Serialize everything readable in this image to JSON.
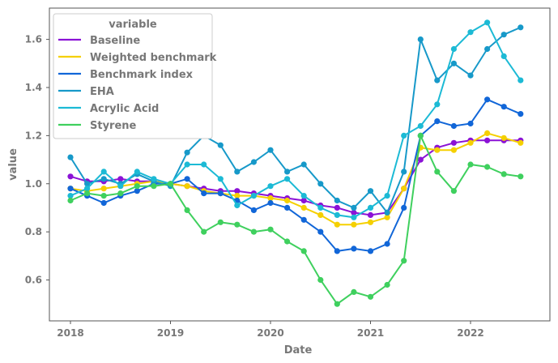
{
  "chart_data": {
    "type": "line",
    "xlabel": "Date",
    "ylabel": "value",
    "x_ticks": [
      "2018",
      "2019",
      "2020",
      "2021",
      "2022"
    ],
    "y_ticks": [
      "0.6",
      "0.8",
      "1.0",
      "1.2",
      "1.4",
      "1.6"
    ],
    "ylim": [
      0.43,
      1.73
    ],
    "grid": false,
    "legend_title": "variable",
    "legend_position": "top-left",
    "x": [
      "2018-01",
      "2018-03",
      "2018-05",
      "2018-07",
      "2018-09",
      "2018-11",
      "2019-01",
      "2019-03",
      "2019-05",
      "2019-07",
      "2019-09",
      "2019-11",
      "2020-01",
      "2020-03",
      "2020-05",
      "2020-07",
      "2020-09",
      "2020-11",
      "2021-01",
      "2021-03",
      "2021-05",
      "2021-07",
      "2021-09",
      "2021-11",
      "2022-01",
      "2022-03",
      "2022-05",
      "2022-07"
    ],
    "series": [
      {
        "name": "Baseline",
        "color": "#8b12d6",
        "values": [
          1.03,
          1.01,
          1.01,
          1.02,
          1.01,
          1.01,
          1.0,
          0.99,
          0.98,
          0.97,
          0.97,
          0.96,
          0.95,
          0.94,
          0.93,
          0.91,
          0.9,
          0.88,
          0.87,
          0.88,
          0.98,
          1.1,
          1.15,
          1.17,
          1.18,
          1.18,
          1.18,
          1.18
        ]
      },
      {
        "name": "Weighted benchmark",
        "color": "#f5d000",
        "values": [
          0.98,
          0.97,
          0.98,
          0.99,
          1.0,
          1.01,
          1.0,
          0.99,
          0.97,
          0.96,
          0.95,
          0.95,
          0.94,
          0.93,
          0.9,
          0.87,
          0.83,
          0.83,
          0.84,
          0.86,
          0.98,
          1.15,
          1.14,
          1.14,
          1.17,
          1.21,
          1.19,
          1.17
        ]
      },
      {
        "name": "Benchmark index",
        "color": "#1166d8",
        "values": [
          0.98,
          0.95,
          0.92,
          0.95,
          0.97,
          1.0,
          1.0,
          1.02,
          0.96,
          0.96,
          0.93,
          0.89,
          0.92,
          0.9,
          0.85,
          0.8,
          0.72,
          0.73,
          0.72,
          0.75,
          0.9,
          1.2,
          1.26,
          1.24,
          1.25,
          1.35,
          1.32,
          1.29
        ]
      },
      {
        "name": "EHA",
        "color": "#1799c9",
        "values": [
          1.11,
          1.0,
          1.02,
          1.0,
          1.04,
          1.01,
          0.99,
          1.13,
          1.2,
          1.16,
          1.05,
          1.09,
          1.14,
          1.05,
          1.08,
          1.0,
          0.93,
          0.9,
          0.97,
          0.88,
          1.05,
          1.6,
          1.43,
          1.5,
          1.45,
          1.56,
          1.62,
          1.65
        ]
      },
      {
        "name": "Acrylic Acid",
        "color": "#1cbad5",
        "values": [
          0.95,
          0.98,
          1.05,
          0.99,
          1.05,
          1.02,
          1.0,
          1.08,
          1.08,
          1.02,
          0.91,
          0.95,
          0.99,
          1.02,
          0.95,
          0.9,
          0.87,
          0.86,
          0.9,
          0.95,
          1.2,
          1.24,
          1.33,
          1.56,
          1.63,
          1.67,
          1.53,
          1.43
        ]
      },
      {
        "name": "Styrene",
        "color": "#3fd05e",
        "values": [
          0.93,
          0.96,
          0.95,
          0.96,
          0.99,
          0.99,
          1.0,
          0.89,
          0.8,
          0.84,
          0.83,
          0.8,
          0.81,
          0.76,
          0.72,
          0.6,
          0.5,
          0.55,
          0.53,
          0.58,
          0.68,
          1.2,
          1.05,
          0.97,
          1.08,
          1.07,
          1.04,
          1.03
        ]
      }
    ]
  }
}
